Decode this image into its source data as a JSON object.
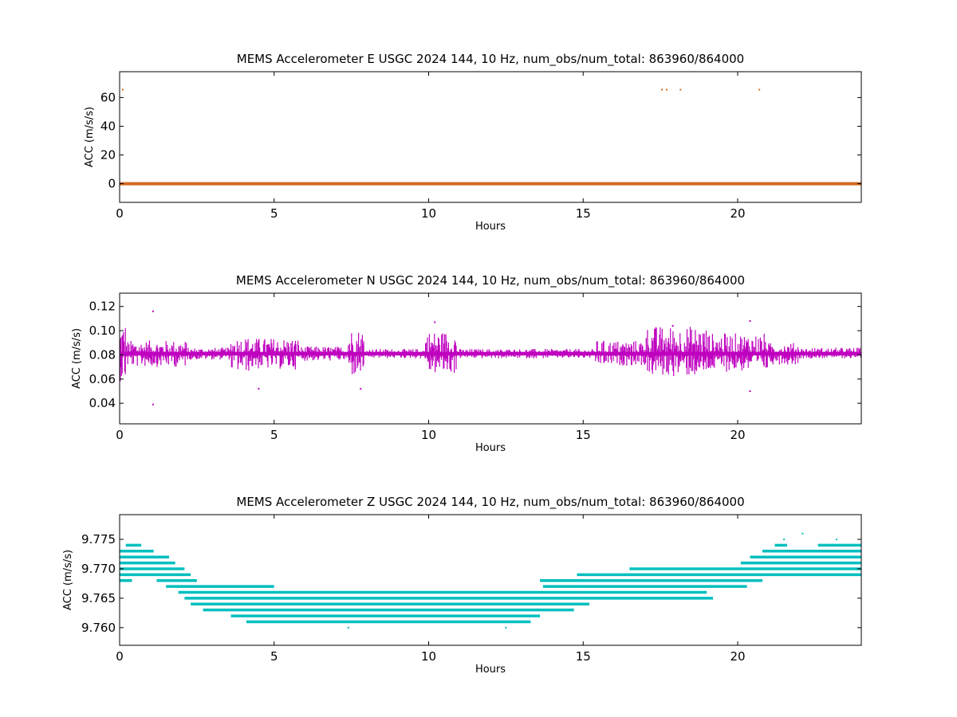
{
  "chart_data": [
    {
      "type": "scatter",
      "title": "MEMS Accelerometer E USGC 2024 144, 10 Hz, num_obs/num_total: 863960/864000",
      "xlabel": "Hours",
      "ylabel": "ACC (m/s/s)",
      "xlim": [
        0,
        24
      ],
      "ylim": [
        -13,
        78
      ],
      "xticks": [
        0,
        5,
        10,
        15,
        20
      ],
      "yticks": [
        0,
        20,
        40,
        60
      ],
      "color": "#d2691e",
      "grid": false,
      "series": [
        {
          "baseline": {
            "x": [
              0,
              24
            ],
            "y": 0.0
          },
          "outliers": [
            {
              "x": 0.1,
              "y": 65.5
            },
            {
              "x": 17.55,
              "y": 65.5
            },
            {
              "x": 17.7,
              "y": 65.5
            },
            {
              "x": 18.15,
              "y": 65.5
            },
            {
              "x": 20.7,
              "y": 65.5
            }
          ]
        }
      ]
    },
    {
      "type": "scatter",
      "title": "MEMS Accelerometer N USGC 2024 144, 10 Hz, num_obs/num_total: 863960/864000",
      "xlabel": "Hours",
      "ylabel": "ACC (m/s/s)",
      "xlim": [
        0,
        24
      ],
      "ylim": [
        0.023,
        0.131
      ],
      "xticks": [
        0,
        5,
        10,
        15,
        20
      ],
      "yticks": [
        0.04,
        0.06,
        0.08,
        0.1,
        0.12
      ],
      "ytick_labels": [
        "0.04",
        "0.06",
        "0.08",
        "0.10",
        "0.12"
      ],
      "color": "#bf00bf",
      "grid": false,
      "series": [
        {
          "baseline": 0.081,
          "noise_segments": [
            {
              "x": [
                0.0,
                0.2
              ],
              "min": 0.058,
              "max": 0.108
            },
            {
              "x": [
                0.2,
                2.2
              ],
              "min": 0.07,
              "max": 0.092
            },
            {
              "x": [
                2.2,
                3.6
              ],
              "min": 0.076,
              "max": 0.086
            },
            {
              "x": [
                3.6,
                4.2
              ],
              "min": 0.066,
              "max": 0.095
            },
            {
              "x": [
                4.2,
                5.8
              ],
              "min": 0.068,
              "max": 0.094
            },
            {
              "x": [
                5.8,
                7.4
              ],
              "min": 0.075,
              "max": 0.087
            },
            {
              "x": [
                7.4,
                7.9
              ],
              "min": 0.062,
              "max": 0.102
            },
            {
              "x": [
                7.9,
                9.9
              ],
              "min": 0.077,
              "max": 0.085
            },
            {
              "x": [
                9.9,
                10.9
              ],
              "min": 0.064,
              "max": 0.1
            },
            {
              "x": [
                10.9,
                15.4
              ],
              "min": 0.077,
              "max": 0.085
            },
            {
              "x": [
                15.4,
                17.0
              ],
              "min": 0.071,
              "max": 0.092
            },
            {
              "x": [
                17.0,
                19.0
              ],
              "min": 0.062,
              "max": 0.104
            },
            {
              "x": [
                19.0,
                21.0
              ],
              "min": 0.066,
              "max": 0.098
            },
            {
              "x": [
                21.0,
                22.0
              ],
              "min": 0.072,
              "max": 0.09
            },
            {
              "x": [
                22.0,
                24.0
              ],
              "min": 0.077,
              "max": 0.086
            }
          ],
          "outliers": [
            {
              "x": 1.08,
              "y": 0.116
            },
            {
              "x": 1.08,
              "y": 0.039
            },
            {
              "x": 4.5,
              "y": 0.052
            },
            {
              "x": 7.8,
              "y": 0.052
            },
            {
              "x": 10.2,
              "y": 0.107
            },
            {
              "x": 17.9,
              "y": 0.104
            },
            {
              "x": 20.4,
              "y": 0.108
            },
            {
              "x": 20.4,
              "y": 0.05
            }
          ]
        }
      ]
    },
    {
      "type": "scatter",
      "title": "MEMS Accelerometer Z USGC 2024 144, 10 Hz, num_obs/num_total: 863960/864000",
      "xlabel": "Hours",
      "ylabel": "ACC (m/s/s)",
      "xlim": [
        0,
        24
      ],
      "ylim": [
        9.757,
        9.7792
      ],
      "xticks": [
        0,
        5,
        10,
        15,
        20
      ],
      "yticks": [
        9.76,
        9.765,
        9.77,
        9.775
      ],
      "ytick_labels": [
        "9.760",
        "9.765",
        "9.770",
        "9.775"
      ],
      "color": "#00bfbf",
      "grid": false,
      "quantization_step": 0.001,
      "series": [
        {
          "levels": [
            {
              "y": 9.774,
              "ranges": [
                [
                  0.2,
                  0.7
                ],
                [
                  21.2,
                  21.6
                ],
                [
                  22.6,
                  24.0
                ]
              ]
            },
            {
              "y": 9.773,
              "ranges": [
                [
                  0.0,
                  1.1
                ],
                [
                  20.8,
                  24.0
                ]
              ]
            },
            {
              "y": 9.772,
              "ranges": [
                [
                  0.0,
                  1.6
                ],
                [
                  20.4,
                  24.0
                ]
              ]
            },
            {
              "y": 9.771,
              "ranges": [
                [
                  0.0,
                  1.8
                ],
                [
                  20.1,
                  24.0
                ]
              ]
            },
            {
              "y": 9.77,
              "ranges": [
                [
                  0.0,
                  2.1
                ],
                [
                  16.5,
                  24.0
                ]
              ]
            },
            {
              "y": 9.769,
              "ranges": [
                [
                  0.0,
                  2.3
                ],
                [
                  14.8,
                  24.0
                ]
              ]
            },
            {
              "y": 9.768,
              "ranges": [
                [
                  0.0,
                  0.4
                ],
                [
                  1.2,
                  2.5
                ],
                [
                  13.6,
                  20.8
                ]
              ]
            },
            {
              "y": 9.767,
              "ranges": [
                [
                  1.5,
                  5.0
                ],
                [
                  13.7,
                  20.3
                ]
              ]
            },
            {
              "y": 9.766,
              "ranges": [
                [
                  1.9,
                  15.0
                ],
                [
                  15.0,
                  19.0
                ]
              ]
            },
            {
              "y": 9.765,
              "ranges": [
                [
                  2.1,
                  19.2
                ]
              ]
            },
            {
              "y": 9.764,
              "ranges": [
                [
                  2.3,
                  15.2
                ]
              ]
            },
            {
              "y": 9.763,
              "ranges": [
                [
                  2.7,
                  14.7
                ]
              ]
            },
            {
              "y": 9.762,
              "ranges": [
                [
                  3.6,
                  13.6
                ]
              ]
            },
            {
              "y": 9.761,
              "ranges": [
                [
                  4.1,
                  13.3
                ]
              ]
            }
          ],
          "outliers": [
            {
              "x": 7.4,
              "y": 9.76
            },
            {
              "x": 12.5,
              "y": 9.76
            },
            {
              "x": 22.1,
              "y": 9.776
            },
            {
              "x": 21.5,
              "y": 9.775
            },
            {
              "x": 23.2,
              "y": 9.775
            }
          ]
        }
      ]
    }
  ]
}
